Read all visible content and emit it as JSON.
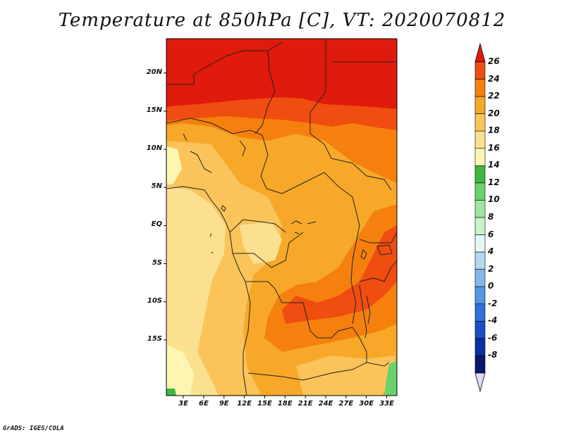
{
  "title": "Temperature at 850hPa [C], VT: 2020070812",
  "credit": "GrADS: IGES/COLA",
  "map": {
    "lat_labels": [
      {
        "label": "20N",
        "lat": 20
      },
      {
        "label": "15N",
        "lat": 15
      },
      {
        "label": "10N",
        "lat": 10
      },
      {
        "label": "5N",
        "lat": 5
      },
      {
        "label": "EQ",
        "lat": 0
      },
      {
        "label": "5S",
        "lat": -5
      },
      {
        "label": "10S",
        "lat": -10
      },
      {
        "label": "15S",
        "lat": -15
      }
    ],
    "lon_labels": [
      {
        "label": "3E",
        "lon": 3
      },
      {
        "label": "6E",
        "lon": 6
      },
      {
        "label": "9E",
        "lon": 9
      },
      {
        "label": "12E",
        "lon": 12
      },
      {
        "label": "15E",
        "lon": 15
      },
      {
        "label": "18E",
        "lon": 18
      },
      {
        "label": "21E",
        "lon": 21
      },
      {
        "label": "24E",
        "lon": 24
      },
      {
        "label": "27E",
        "lon": 27
      },
      {
        "label": "30E",
        "lon": 30
      },
      {
        "label": "33E",
        "lon": 33
      }
    ]
  },
  "colorbar": {
    "labels": [
      "26",
      "24",
      "22",
      "20",
      "18",
      "16",
      "14",
      "12",
      "10",
      "8",
      "6",
      "4",
      "2",
      "0",
      "-2",
      "-4",
      "-6",
      "-8"
    ],
    "colors": [
      "#e01a0c",
      "#f04d10",
      "#f5800e",
      "#f7a828",
      "#fac45a",
      "#fbe090",
      "#fcf6b2",
      "#3eb83e",
      "#6ad26a",
      "#9ee59e",
      "#c8f3c8",
      "#e4f7f7",
      "#b4d8f2",
      "#82b8ec",
      "#5496e6",
      "#3070dc",
      "#1a4fc4",
      "#0d2fa0",
      "#08186e",
      "#d8dcf4"
    ]
  }
}
